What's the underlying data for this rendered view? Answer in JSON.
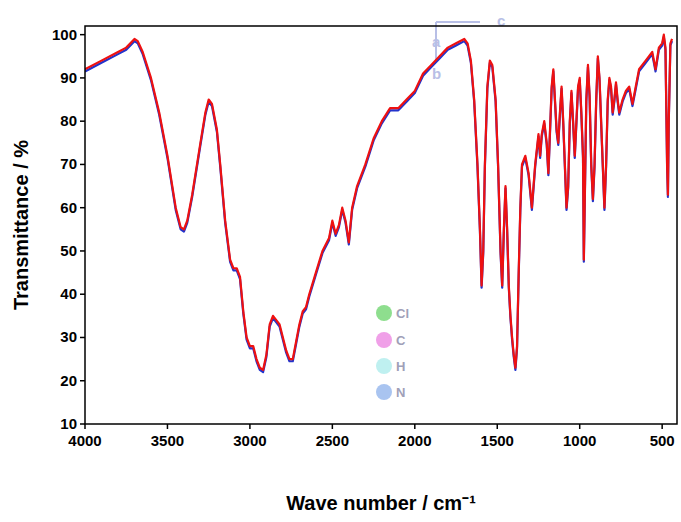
{
  "chart_data": {
    "type": "line",
    "x_label": "Wave number / cm⁻¹",
    "y_label": "Transmittance / %",
    "xlim": [
      4000,
      410
    ],
    "ylim": [
      10,
      102
    ],
    "xticks": [
      4000,
      3500,
      3000,
      2500,
      2000,
      1500,
      1000,
      500
    ],
    "yticks": [
      10,
      20,
      30,
      40,
      50,
      60,
      70,
      80,
      90,
      100
    ],
    "annotations": [
      {
        "text": "Cl",
        "color": "#8ede8e"
      },
      {
        "text": "C",
        "color": "#f0a0e8"
      },
      {
        "text": "H",
        "color": "#bff0f0"
      },
      {
        "text": "N",
        "color": "#a9c4f0"
      },
      {
        "text": "c",
        "color": "#b8bfe6"
      },
      {
        "text": "a",
        "color": "#b8bfe6"
      },
      {
        "text": "b",
        "color": "#b8bfe6"
      }
    ],
    "x": [
      4000,
      3900,
      3800,
      3750,
      3700,
      3680,
      3650,
      3600,
      3550,
      3500,
      3450,
      3420,
      3400,
      3380,
      3350,
      3300,
      3270,
      3250,
      3230,
      3200,
      3180,
      3150,
      3120,
      3100,
      3080,
      3060,
      3040,
      3020,
      3000,
      2980,
      2960,
      2940,
      2920,
      2900,
      2880,
      2860,
      2840,
      2820,
      2800,
      2780,
      2760,
      2740,
      2720,
      2700,
      2680,
      2660,
      2640,
      2600,
      2560,
      2520,
      2500,
      2480,
      2460,
      2440,
      2420,
      2400,
      2380,
      2350,
      2300,
      2250,
      2200,
      2150,
      2100,
      2050,
      2000,
      1950,
      1900,
      1850,
      1800,
      1750,
      1700,
      1680,
      1660,
      1640,
      1620,
      1605,
      1595,
      1585,
      1575,
      1560,
      1545,
      1530,
      1510,
      1495,
      1480,
      1470,
      1460,
      1450,
      1440,
      1430,
      1420,
      1410,
      1400,
      1390,
      1380,
      1370,
      1360,
      1350,
      1330,
      1310,
      1290,
      1270,
      1250,
      1240,
      1230,
      1215,
      1200,
      1190,
      1180,
      1170,
      1160,
      1150,
      1140,
      1130,
      1120,
      1110,
      1100,
      1090,
      1080,
      1070,
      1060,
      1050,
      1040,
      1030,
      1020,
      1010,
      1000,
      990,
      980,
      975,
      970,
      960,
      950,
      940,
      930,
      920,
      910,
      900,
      890,
      880,
      870,
      860,
      850,
      840,
      830,
      820,
      810,
      800,
      790,
      780,
      770,
      760,
      740,
      720,
      700,
      680,
      660,
      640,
      600,
      560,
      540,
      520,
      500,
      490,
      480,
      470,
      465,
      460,
      450,
      440
    ],
    "series": [
      {
        "color": "#2233cc",
        "values": [
          91.5,
          93.5,
          95.5,
          96.5,
          98.5,
          98,
          95.5,
          89.5,
          81.5,
          71.5,
          59.5,
          55,
          54.5,
          56.5,
          62.5,
          74.5,
          81.5,
          84.5,
          83.5,
          77.5,
          69.5,
          56.5,
          47.5,
          45.5,
          45.5,
          43.5,
          35.5,
          29.5,
          27.5,
          27.5,
          24.5,
          22.5,
          22,
          25.5,
          32.5,
          34.5,
          33.5,
          32.5,
          29.5,
          26.5,
          24.5,
          24.5,
          28.5,
          32.5,
          35.5,
          36.5,
          39.5,
          44.5,
          49.5,
          52.5,
          56.5,
          53.5,
          55.5,
          59.5,
          56.5,
          51.5,
          59.5,
          64.5,
          69.5,
          75.5,
          79.5,
          82.5,
          82.5,
          84.5,
          86.5,
          90.5,
          92.5,
          94.5,
          96.5,
          97.5,
          98.5,
          97.5,
          93.5,
          84.5,
          69.5,
          54.5,
          41.5,
          49.5,
          69.5,
          87.5,
          93.5,
          92.5,
          84.5,
          69.5,
          49.5,
          41.5,
          54.5,
          64.5,
          54.5,
          41.5,
          34.5,
          29.5,
          25.5,
          22.5,
          27.5,
          44.5,
          59.5,
          69.5,
          71.5,
          67.5,
          59.5,
          69.5,
          76.5,
          71.5,
          76.5,
          79.5,
          74.5,
          67.5,
          77.5,
          87.5,
          91.5,
          84.5,
          77.5,
          74.5,
          81.5,
          87.5,
          79.5,
          69.5,
          59.5,
          64.5,
          79.5,
          86.5,
          79.5,
          71.5,
          79.5,
          87.5,
          89.5,
          81.5,
          71.5,
          47.5,
          59.5,
          84.5,
          92.5,
          85.5,
          69.5,
          61.5,
          69.5,
          84.5,
          94.5,
          89.5,
          79.5,
          69.5,
          59.5,
          69.5,
          84.5,
          89.5,
          87.5,
          81.5,
          84.5,
          88.5,
          84.5,
          81.5,
          84.5,
          86.5,
          87.5,
          83.5,
          87.5,
          91.5,
          93.5,
          95.5,
          91.5,
          96.5,
          97.5,
          99.5,
          96.5,
          69.5,
          62.5,
          79.5,
          97.5,
          98.5
        ]
      },
      {
        "color": "#ee1111",
        "values": [
          92,
          94,
          96,
          97,
          99,
          98.5,
          96,
          90,
          82,
          72,
          60,
          55.5,
          55,
          57,
          63,
          75,
          82,
          85,
          84,
          78,
          70,
          57,
          48,
          46,
          46,
          44,
          36,
          30,
          28,
          28,
          25,
          23,
          22.5,
          26,
          33,
          35,
          34,
          33,
          30,
          27,
          25,
          25,
          29,
          33,
          36,
          37,
          40,
          45,
          50,
          53,
          57,
          54,
          56,
          60,
          57,
          52,
          60,
          65,
          70,
          76,
          80,
          83,
          83,
          85,
          87,
          91,
          93,
          95,
          97,
          98,
          99,
          98,
          94,
          85,
          70,
          55,
          42,
          50,
          70,
          88,
          94,
          93,
          85,
          70,
          50,
          42,
          55,
          65,
          55,
          42,
          35,
          30,
          26,
          23,
          28,
          45,
          60,
          70,
          72,
          68,
          60,
          70,
          77,
          72,
          77,
          80,
          75,
          68,
          78,
          88,
          92,
          85,
          78,
          75,
          82,
          88,
          80,
          70,
          60,
          65,
          80,
          87,
          80,
          72,
          80,
          88,
          90,
          82,
          72,
          48,
          60,
          85,
          93,
          86,
          70,
          62,
          70,
          85,
          95,
          90,
          80,
          70,
          60,
          70,
          85,
          90,
          88,
          82,
          85,
          89,
          85,
          82,
          85,
          87,
          88,
          84,
          88,
          92,
          94,
          96,
          92,
          97,
          98,
          100,
          97,
          70,
          63,
          80,
          98,
          99
        ]
      }
    ]
  }
}
